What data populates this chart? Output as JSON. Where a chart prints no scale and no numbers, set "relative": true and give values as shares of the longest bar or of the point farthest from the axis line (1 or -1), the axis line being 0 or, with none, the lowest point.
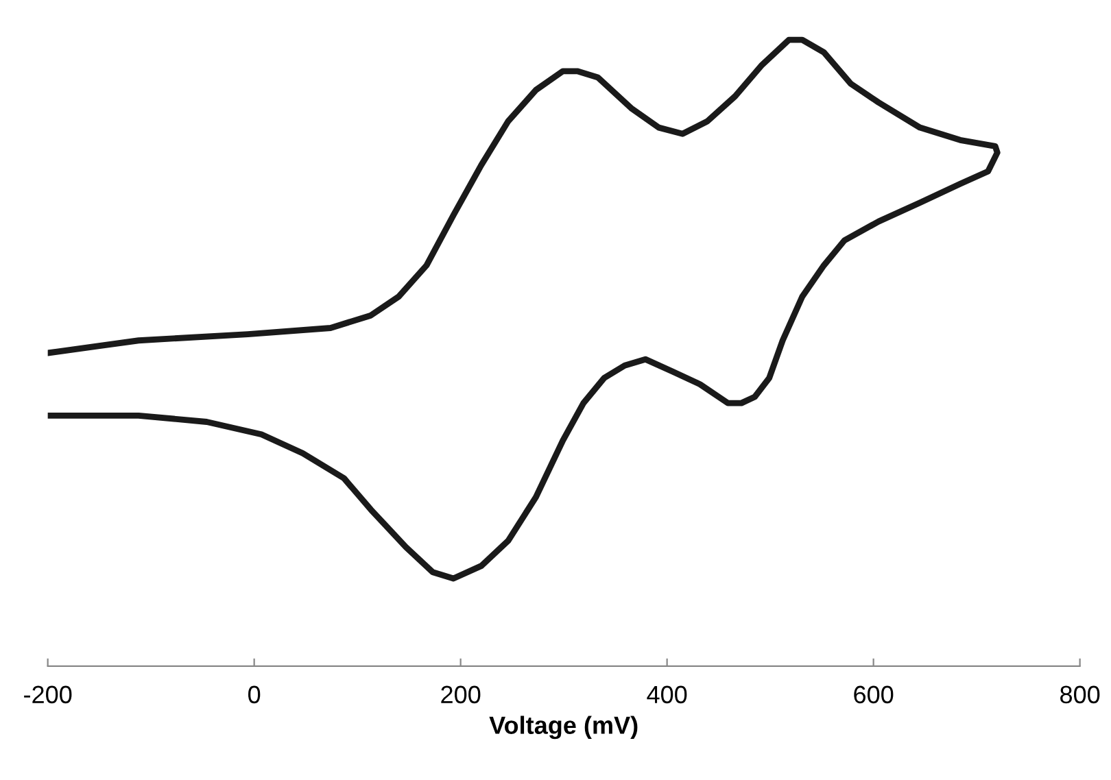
{
  "chart_data": {
    "type": "line",
    "xlabel": "Voltage (mV)",
    "relative": true,
    "xlim": [
      -200,
      800
    ],
    "xticks": [
      -200,
      0,
      200,
      400,
      600,
      800
    ],
    "marker": "none",
    "line_style": "solid",
    "series": [
      {
        "color": "#1a1a1a",
        "x": [
          -200,
          -112,
          -6,
          74,
          113,
          140,
          167,
          193,
          220,
          246,
          273,
          299,
          313,
          333,
          366,
          392,
          415,
          439,
          466,
          492,
          518,
          531,
          552,
          578,
          605,
          645,
          684,
          718,
          720,
          711,
          684,
          645,
          605,
          572,
          552,
          531,
          512,
          499,
          485,
          472,
          459,
          432,
          406,
          379,
          359,
          339,
          319,
          299,
          273,
          246,
          220,
          193,
          173,
          147,
          113,
          87,
          47,
          7,
          -46,
          -112,
          -200
        ],
        "values": [
          0.5,
          0.52,
          0.53,
          0.54,
          0.56,
          0.59,
          0.64,
          0.72,
          0.8,
          0.87,
          0.92,
          0.95,
          0.95,
          0.94,
          0.89,
          0.86,
          0.85,
          0.87,
          0.91,
          0.96,
          1.0,
          1.0,
          0.98,
          0.93,
          0.9,
          0.86,
          0.84,
          0.83,
          0.82,
          0.79,
          0.77,
          0.74,
          0.71,
          0.68,
          0.64,
          0.59,
          0.52,
          0.46,
          0.43,
          0.42,
          0.42,
          0.45,
          0.47,
          0.49,
          0.48,
          0.46,
          0.42,
          0.36,
          0.27,
          0.2,
          0.16,
          0.14,
          0.15,
          0.19,
          0.25,
          0.3,
          0.34,
          0.37,
          0.39,
          0.4,
          0.4
        ]
      }
    ]
  }
}
